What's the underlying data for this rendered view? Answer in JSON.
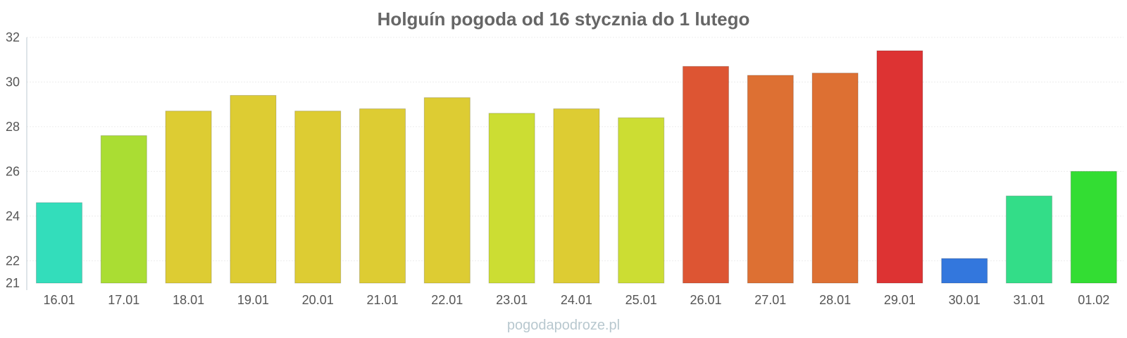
{
  "chart_data": {
    "type": "bar",
    "title": "Holguín pogoda od 16 stycznia do 1 lutego",
    "xlabel": "",
    "ylabel": "",
    "categories": [
      "16.01",
      "17.01",
      "18.01",
      "19.01",
      "20.01",
      "21.01",
      "22.01",
      "23.01",
      "24.01",
      "25.01",
      "26.01",
      "27.01",
      "28.01",
      "29.01",
      "30.01",
      "31.01",
      "01.02"
    ],
    "values": [
      24.6,
      27.6,
      28.7,
      29.4,
      28.7,
      28.8,
      29.3,
      28.6,
      28.8,
      28.4,
      30.7,
      30.3,
      30.4,
      31.4,
      22.1,
      24.9,
      26.0
    ],
    "colors": [
      "#33ddbb",
      "#aadd33",
      "#ddcc33",
      "#ddcc33",
      "#ddcc33",
      "#ddcc33",
      "#ddcc33",
      "#ccdd33",
      "#ddcc33",
      "#ccdd33",
      "#dd5533",
      "#dd7033",
      "#dd7033",
      "#dd3333",
      "#3377dd",
      "#33dd88",
      "#33dd33"
    ],
    "ylim": [
      21,
      32
    ],
    "yticks": [
      "21",
      "22",
      "24",
      "26",
      "28",
      "30",
      "32"
    ],
    "grid": true,
    "legend": "none"
  },
  "watermark": "pogodapodroze.pl"
}
